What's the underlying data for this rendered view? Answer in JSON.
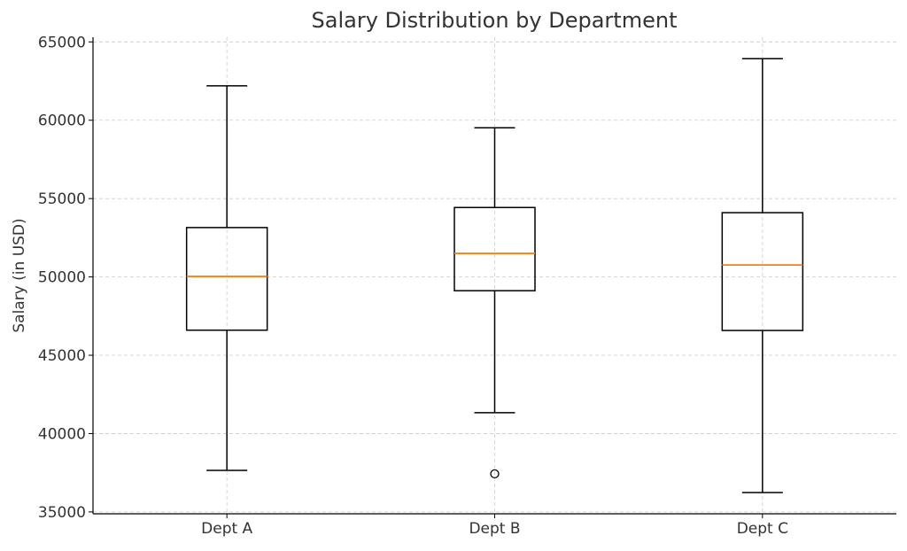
{
  "chart_data": {
    "type": "boxplot",
    "title": "Salary Distribution by Department",
    "xlabel": "",
    "ylabel": "Salary (in USD)",
    "categories": [
      "Dept A",
      "Dept B",
      "Dept C"
    ],
    "boxes": [
      {
        "name": "Dept A",
        "whisker_low": 37650,
        "q1": 46600,
        "median": 50030,
        "q3": 53150,
        "whisker_high": 62200,
        "outliers": []
      },
      {
        "name": "Dept B",
        "whisker_low": 41330,
        "q1": 49120,
        "median": 51500,
        "q3": 54430,
        "whisker_high": 59520,
        "outliers": [
          37430
        ]
      },
      {
        "name": "Dept C",
        "whisker_low": 36240,
        "q1": 46580,
        "median": 50760,
        "q3": 54100,
        "whisker_high": 63930,
        "outliers": []
      }
    ],
    "yticks": [
      35000,
      40000,
      45000,
      50000,
      55000,
      60000,
      65000
    ],
    "ylim": [
      34880,
      65300
    ],
    "grid": true,
    "colors": {
      "box": "#000000",
      "median": "#ff7f0e",
      "grid": "#cccccc",
      "text": "#333333"
    }
  }
}
